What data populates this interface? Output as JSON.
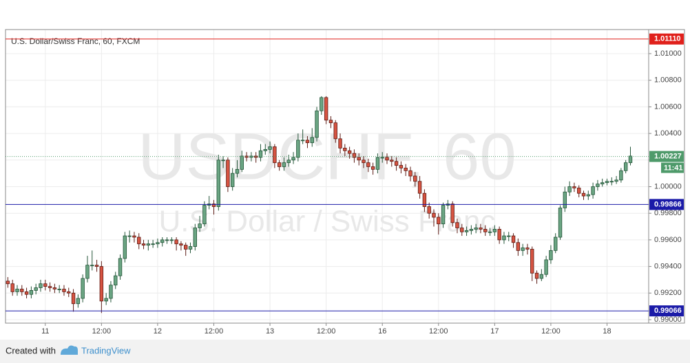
{
  "chart_data": {
    "type": "candlestick",
    "title": "U.S. Dollar/Swiss Franc, 60, FXCM",
    "watermark": "USDCHF, 60",
    "watermark_subtitle": "U.S. Dollar / Swiss Franc",
    "grid": true,
    "up_color": "#6ba583",
    "down_color": "#d75442",
    "xlim": [
      -0.5,
      136.9
    ],
    "xticks": [
      {
        "value": 8,
        "label": "11"
      },
      {
        "value": 20,
        "label": "12:00"
      },
      {
        "value": 32,
        "label": "12"
      },
      {
        "value": 44,
        "label": "12:00"
      },
      {
        "value": 56,
        "label": "13"
      },
      {
        "value": 68,
        "label": "12:00"
      },
      {
        "value": 80,
        "label": "16"
      },
      {
        "value": 92,
        "label": "12:00"
      },
      {
        "value": 104,
        "label": "17"
      },
      {
        "value": 116,
        "label": "12:00"
      },
      {
        "value": 128,
        "label": "18"
      }
    ],
    "ylim": [
      0.98974,
      1.01181
    ],
    "yticks": [
      {
        "value": 0.99,
        "label": "0.99000"
      },
      {
        "value": 0.992,
        "label": "0.99200"
      },
      {
        "value": 0.994,
        "label": "0.99400"
      },
      {
        "value": 0.996,
        "label": "0.99600"
      },
      {
        "value": 0.998,
        "label": "0.99800"
      },
      {
        "value": 1,
        "label": "1.00000"
      },
      {
        "value": 1.002,
        "label": "1.00200"
      },
      {
        "value": 1.004,
        "label": "1.00400"
      },
      {
        "value": 1.006,
        "label": "1.00600"
      },
      {
        "value": 1.008,
        "label": "1.00800"
      },
      {
        "value": 1.01,
        "label": "1.01000"
      }
    ],
    "levels": [
      {
        "value": 1.0111,
        "label": "1.01110",
        "color": "#e0201b"
      },
      {
        "value": 0.99866,
        "label": "0.99866",
        "color": "#1a1aa8"
      },
      {
        "value": 0.99066,
        "label": "0.99066",
        "color": "#1a1aa8"
      }
    ],
    "last_price": {
      "value": 1.00227,
      "label": "1.00227",
      "countdown": "11:41",
      "color": "#4e9a6a"
    },
    "series": {
      "open": [
        0.9929,
        0.9927,
        0.9921,
        0.9923,
        0.9921,
        0.9919,
        0.9922,
        0.9924,
        0.9927,
        0.9925,
        0.9924,
        0.9923,
        0.9923,
        0.9921,
        0.992,
        0.9912,
        0.9916,
        0.9931,
        0.9941,
        0.9941,
        0.994,
        0.9914,
        0.9916,
        0.9926,
        0.9933,
        0.9946,
        0.9963,
        0.9963,
        0.9962,
        0.9957,
        0.9956,
        0.9957,
        0.9957,
        0.9958,
        0.996,
        0.996,
        0.996,
        0.9957,
        0.9956,
        0.9953,
        0.9955,
        0.9969,
        0.9972,
        0.9986,
        0.9987,
        0.9985,
        1.002,
        1.002,
        1.0,
        1.001,
        1.0013,
        1.0023,
        1.0022,
        1.0023,
        1.0022,
        1.0027,
        1.0028,
        1.003,
        1.0018,
        1.0015,
        1.0018,
        1.002,
        1.0022,
        1.0035,
        1.0035,
        1.0033,
        1.0037,
        1.0057,
        1.0067,
        1.005,
        1.0048,
        1.0036,
        1.0029,
        1.0027,
        1.0025,
        1.0022,
        1.002,
        1.0018,
        1.0015,
        1.0013,
        1.0022,
        1.0022,
        1.002,
        1.0019,
        1.0016,
        1.0014,
        1.0012,
        1.0008,
        1.0004,
        0.9995,
        0.9985,
        0.998,
        0.9977,
        0.9972,
        0.9986,
        0.9987,
        0.9973,
        0.9969,
        0.9966,
        0.9967,
        0.9968,
        0.9969,
        0.9968,
        0.9966,
        0.9966,
        0.9968,
        0.996,
        0.9963,
        0.9963,
        0.9958,
        0.9952,
        0.9954,
        0.9953,
        0.9935,
        0.9931,
        0.9934,
        0.9945,
        0.9952,
        0.9962,
        0.9984,
        0.9996,
        1.0,
        0.9999,
        0.9995,
        0.9993,
        0.9994,
        1.0,
        1.0002,
        1.0003,
        1.0004,
        1.0004,
        1.0005,
        1.0012,
        1.0018
      ],
      "high": [
        0.9932,
        0.993,
        0.9926,
        0.9926,
        0.9924,
        0.9925,
        0.9927,
        0.993,
        0.993,
        0.9928,
        0.9927,
        0.9926,
        0.9926,
        0.9924,
        0.9923,
        0.9919,
        0.9934,
        0.9948,
        0.9952,
        0.9945,
        0.9944,
        0.992,
        0.9929,
        0.9936,
        0.9949,
        0.9966,
        0.9967,
        0.9966,
        0.9965,
        0.996,
        0.996,
        0.996,
        0.9961,
        0.9962,
        0.9962,
        0.9962,
        0.9962,
        0.9959,
        0.9958,
        0.9958,
        0.9972,
        0.9978,
        0.9989,
        0.9993,
        0.999,
        1.0024,
        1.0023,
        1.0022,
        1.0014,
        1.002,
        1.0027,
        1.0026,
        1.0026,
        1.0026,
        1.0032,
        1.0032,
        1.0034,
        1.0032,
        1.002,
        1.0022,
        1.0024,
        1.0026,
        1.004,
        1.0043,
        1.0038,
        1.0044,
        1.006,
        1.0068,
        1.0068,
        1.0053,
        1.005,
        1.004,
        1.0032,
        1.003,
        1.0028,
        1.0025,
        1.0023,
        1.0021,
        1.0018,
        1.0025,
        1.0026,
        1.0025,
        1.0023,
        1.0022,
        1.0019,
        1.0017,
        1.0015,
        1.0011,
        1.0008,
        0.9998,
        0.9988,
        0.9983,
        0.998,
        0.9988,
        0.999,
        0.9989,
        0.9976,
        0.9972,
        0.997,
        0.9971,
        0.9972,
        0.9972,
        0.9971,
        0.9969,
        0.9971,
        0.997,
        0.9966,
        0.9966,
        0.9965,
        0.9961,
        0.9957,
        0.9957,
        0.9955,
        0.9937,
        0.9938,
        0.9948,
        0.9956,
        0.9965,
        0.9986,
        1.0,
        1.0004,
        1.0003,
        1.0001,
        0.9997,
        0.9997,
        1.0003,
        1.0005,
        1.0006,
        1.0006,
        1.0007,
        1.0008,
        1.0014,
        1.002,
        1.003
      ],
      "low": [
        0.9924,
        0.9918,
        0.9918,
        0.9918,
        0.9916,
        0.9916,
        0.9919,
        0.9921,
        0.9922,
        0.9921,
        0.992,
        0.992,
        0.9918,
        0.9917,
        0.9906,
        0.9909,
        0.9913,
        0.9928,
        0.9937,
        0.9936,
        0.9905,
        0.9911,
        0.9913,
        0.9923,
        0.993,
        0.9943,
        0.9958,
        0.9958,
        0.9953,
        0.9953,
        0.9952,
        0.9954,
        0.9954,
        0.9955,
        0.9957,
        0.9957,
        0.9952,
        0.9952,
        0.9948,
        0.995,
        0.9952,
        0.9966,
        0.997,
        0.9983,
        0.9979,
        0.9982,
        1.0014,
        0.9996,
        0.9997,
        1.0007,
        1.0011,
        1.0019,
        1.0019,
        1.0018,
        1.0019,
        1.0024,
        1.0025,
        1.0014,
        1.0012,
        1.0012,
        1.0015,
        1.0017,
        1.0019,
        1.0032,
        1.0029,
        1.003,
        1.0034,
        1.0054,
        1.0047,
        1.0044,
        1.0033,
        1.0025,
        1.0023,
        1.0021,
        1.0018,
        1.0016,
        1.0014,
        1.0011,
        1.0009,
        1.001,
        1.0018,
        1.0017,
        1.0015,
        1.0012,
        1.001,
        1.0008,
        1.0004,
        1.0,
        0.9991,
        0.9981,
        0.9976,
        0.997,
        0.9964,
        0.9969,
        0.9983,
        0.997,
        0.9965,
        0.9963,
        0.9963,
        0.9964,
        0.9965,
        0.9965,
        0.9963,
        0.9963,
        0.9963,
        0.9957,
        0.9957,
        0.9959,
        0.9954,
        0.9948,
        0.9948,
        0.9949,
        0.9929,
        0.9927,
        0.9929,
        0.9932,
        0.9942,
        0.995,
        0.996,
        0.9981,
        0.9993,
        0.9996,
        0.9992,
        0.999,
        0.999,
        0.9991,
        0.9997,
        1.0,
        1.0001,
        1.0001,
        1.0002,
        1.0003,
        1.001,
        1.0016
      ],
      "close": [
        0.9927,
        0.9921,
        0.9923,
        0.9921,
        0.9919,
        0.9922,
        0.9924,
        0.9927,
        0.9925,
        0.9924,
        0.9923,
        0.9923,
        0.9921,
        0.992,
        0.9912,
        0.9916,
        0.9931,
        0.9941,
        0.9941,
        0.994,
        0.9914,
        0.9916,
        0.9926,
        0.9933,
        0.9946,
        0.9963,
        0.9963,
        0.9962,
        0.9957,
        0.9956,
        0.9957,
        0.9957,
        0.9958,
        0.996,
        0.996,
        0.996,
        0.9957,
        0.9956,
        0.9953,
        0.9955,
        0.9969,
        0.9972,
        0.9986,
        0.9987,
        0.9985,
        1.002,
        1.002,
        1.0,
        1.001,
        1.0013,
        1.0023,
        1.0022,
        1.0023,
        1.0022,
        1.0027,
        1.0028,
        1.003,
        1.0018,
        1.0015,
        1.0018,
        1.002,
        1.0022,
        1.0035,
        1.0035,
        1.0033,
        1.0037,
        1.0057,
        1.0067,
        1.005,
        1.0048,
        1.0036,
        1.0029,
        1.0027,
        1.0025,
        1.0022,
        1.002,
        1.0018,
        1.0015,
        1.0013,
        1.0022,
        1.0022,
        1.002,
        1.0019,
        1.0016,
        1.0014,
        1.0012,
        1.0008,
        1.0004,
        0.9995,
        0.9985,
        0.998,
        0.9977,
        0.9972,
        0.9986,
        0.9987,
        0.9973,
        0.9969,
        0.9966,
        0.9967,
        0.9968,
        0.9969,
        0.9968,
        0.9966,
        0.9966,
        0.9968,
        0.996,
        0.9963,
        0.9963,
        0.9958,
        0.9952,
        0.9954,
        0.9953,
        0.9935,
        0.9931,
        0.9934,
        0.9945,
        0.9952,
        0.9962,
        0.9984,
        0.9996,
        1.0,
        0.9999,
        0.9995,
        0.9993,
        0.9994,
        1.0,
        1.0002,
        1.0003,
        1.0004,
        1.0004,
        1.0005,
        1.0012,
        1.0018,
        1.0023
      ]
    }
  },
  "footer": {
    "created_with": "Created with",
    "brand": "TradingView"
  }
}
